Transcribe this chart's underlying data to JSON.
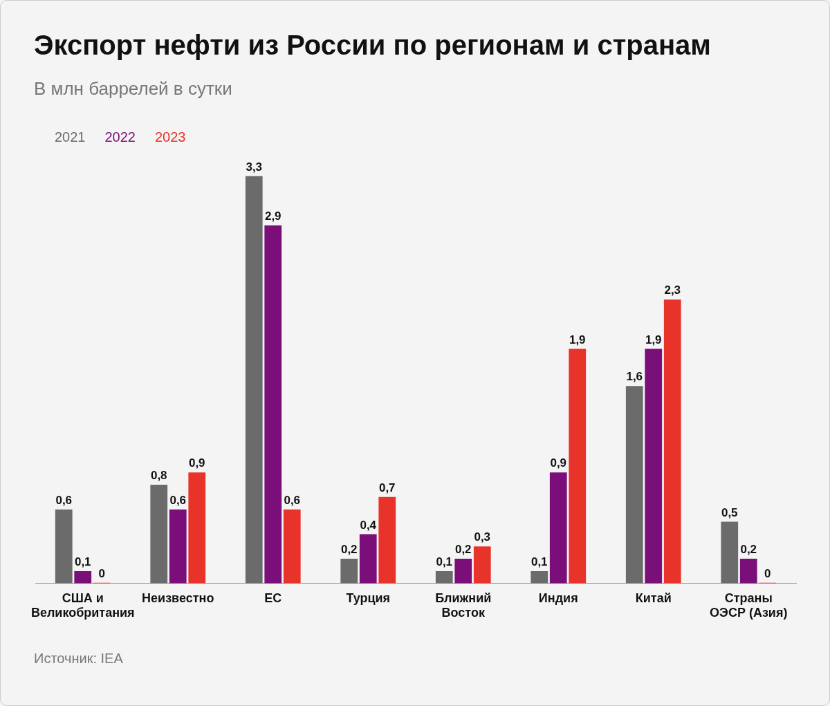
{
  "chart_data": {
    "type": "bar",
    "title": "Экспорт нефти из России по регионам и странам",
    "subtitle": "В млн баррелей в сутки",
    "categories": [
      "США и Великобритания",
      "Неизвестно",
      "ЕС",
      "Турция",
      "Ближний Восток",
      "Индия",
      "Китай",
      "Страны ОЭСР (Азия)"
    ],
    "series": [
      {
        "name": "2021",
        "color": "#6b6b6b",
        "values": [
          0.6,
          0.8,
          3.3,
          0.2,
          0.1,
          0.1,
          1.6,
          0.5
        ],
        "value_labels": [
          "0,6",
          "0,8",
          "3,3",
          "0,2",
          "0,1",
          "0,1",
          "1,6",
          "0,5"
        ]
      },
      {
        "name": "2022",
        "color": "#7a0f7a",
        "values": [
          0.1,
          0.6,
          2.9,
          0.4,
          0.2,
          0.9,
          1.9,
          0.2
        ],
        "value_labels": [
          "0,1",
          "0,6",
          "2,9",
          "0,4",
          "0,2",
          "0,9",
          "1,9",
          "0,2"
        ]
      },
      {
        "name": "2023",
        "color": "#e8332a",
        "values": [
          0,
          0.9,
          0.6,
          0.7,
          0.3,
          1.9,
          2.3,
          0
        ],
        "value_labels": [
          "0",
          "0,9",
          "0,6",
          "0,7",
          "0,3",
          "1,9",
          "2,3",
          "0"
        ]
      }
    ],
    "legend": "top left",
    "grid": false,
    "tick_labels": "x",
    "annotations": [
      "Источник: IEA"
    ]
  }
}
